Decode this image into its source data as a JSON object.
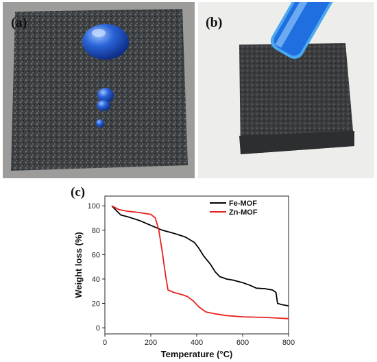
{
  "panels": {
    "a": {
      "label": "(a)"
    },
    "b": {
      "label": "(b)"
    },
    "c": {
      "label": "(c)"
    }
  },
  "colors": {
    "droplet": "#2a64d8",
    "sponge": "#3b3d3f",
    "background_photo": "#eeeeee",
    "fe_mof": "#000000",
    "zn_mof": "#e8201e"
  },
  "chart_data": {
    "type": "line",
    "title": "",
    "xlabel": "Temperature (°C)",
    "ylabel": "Weight loss (%)",
    "xlim": [
      0,
      800
    ],
    "ylim": [
      -5,
      108
    ],
    "xticks": [
      0,
      200,
      400,
      600,
      800
    ],
    "yticks": [
      0,
      20,
      40,
      60,
      80,
      100
    ],
    "grid": false,
    "legend_position": "top-right",
    "series": [
      {
        "name": "Fe-MOF",
        "color": "#000000",
        "points": [
          [
            30,
            100
          ],
          [
            50,
            96
          ],
          [
            70,
            92.5
          ],
          [
            100,
            91
          ],
          [
            150,
            88
          ],
          [
            200,
            84
          ],
          [
            250,
            80
          ],
          [
            300,
            77.5
          ],
          [
            350,
            74.5
          ],
          [
            390,
            70
          ],
          [
            410,
            65
          ],
          [
            430,
            59
          ],
          [
            460,
            52
          ],
          [
            480,
            46
          ],
          [
            500,
            42
          ],
          [
            530,
            40
          ],
          [
            560,
            39
          ],
          [
            600,
            37
          ],
          [
            630,
            35
          ],
          [
            660,
            32.5
          ],
          [
            700,
            32
          ],
          [
            730,
            31
          ],
          [
            745,
            29
          ],
          [
            752,
            20
          ],
          [
            770,
            19
          ],
          [
            800,
            18
          ]
        ]
      },
      {
        "name": "Zn-MOF",
        "color": "#e8201e",
        "points": [
          [
            30,
            100
          ],
          [
            60,
            97
          ],
          [
            100,
            95.5
          ],
          [
            150,
            94.5
          ],
          [
            200,
            93
          ],
          [
            220,
            90
          ],
          [
            235,
            80
          ],
          [
            250,
            62
          ],
          [
            265,
            42
          ],
          [
            275,
            31
          ],
          [
            300,
            29
          ],
          [
            340,
            27
          ],
          [
            360,
            25.5
          ],
          [
            385,
            22
          ],
          [
            410,
            17
          ],
          [
            440,
            13
          ],
          [
            480,
            11.5
          ],
          [
            530,
            10
          ],
          [
            600,
            9
          ],
          [
            700,
            8.5
          ],
          [
            750,
            8
          ],
          [
            800,
            7.5
          ]
        ]
      }
    ]
  }
}
